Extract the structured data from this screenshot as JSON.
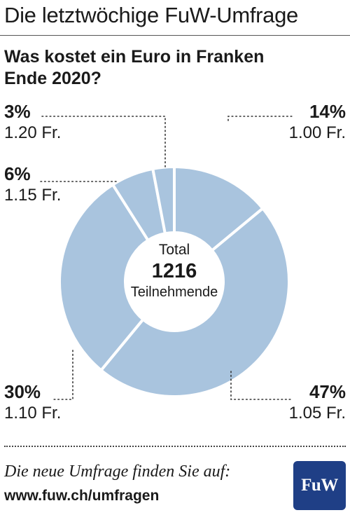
{
  "header": {
    "text": "Die letztwöchige FuW-Umfrage"
  },
  "title": {
    "line1": "Was kostet ein Euro in Franken",
    "line2": "Ende 2020?"
  },
  "colors": {
    "slice": "#a9c4de",
    "separator": "#ffffff",
    "leader": "#333333",
    "logo_bg": "#1f3f86"
  },
  "chart_data": {
    "type": "pie",
    "title": "Was kostet ein Euro in Franken Ende 2020?",
    "total_label": "Total",
    "total_value": "1216",
    "total_unit": "Teilnehmende",
    "slices": [
      {
        "label": "1.00 Fr.",
        "value": 14,
        "pct_text": "14%"
      },
      {
        "label": "1.05 Fr.",
        "value": 47,
        "pct_text": "47%"
      },
      {
        "label": "1.10 Fr.",
        "value": 30,
        "pct_text": "30%"
      },
      {
        "label": "1.15 Fr.",
        "value": 6,
        "pct_text": "6%"
      },
      {
        "label": "1.20 Fr.",
        "value": 3,
        "pct_text": "3%"
      }
    ]
  },
  "footer": {
    "text": "Die neue Umfrage finden Sie auf:",
    "url": "www.fuw.ch/umfragen",
    "logo_text": "FuW"
  }
}
